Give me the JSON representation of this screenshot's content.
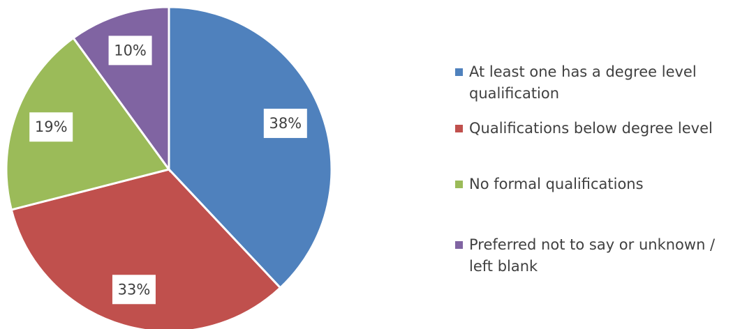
{
  "chart_data": {
    "type": "pie",
    "categories": [
      "At least one has a degree level qualification",
      "Qualifications below degree level",
      "No formal qualifications",
      "Preferred not to say or unknown / left blank"
    ],
    "values": [
      38,
      33,
      19,
      10
    ],
    "value_labels": [
      "38%",
      "33%",
      "19%",
      "10%"
    ],
    "colors": [
      "#4f81bd",
      "#c0504d",
      "#9bbb59",
      "#8064a2"
    ],
    "legend": "right"
  }
}
